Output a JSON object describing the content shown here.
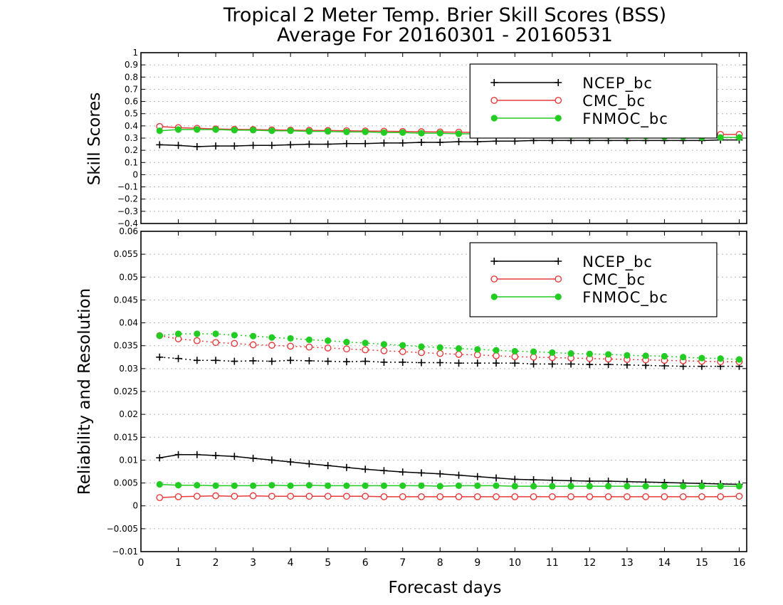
{
  "title_line1": "Tropical 2 Meter Temp. Brier Skill Scores (BSS)",
  "title_line2": "Average For 20160301 - 20160531",
  "xlabel": "Forecast days",
  "colors": {
    "NCEP_bc": "#000000",
    "CMC_bc": "#e83a3a",
    "FNMOC_bc": "#22cc22",
    "grid": "#b5b5b5"
  },
  "chart_data": [
    {
      "type": "line",
      "ylabel": "Skill Scores",
      "ylim": [
        -0.4,
        1
      ],
      "yticks": [
        1,
        0.9,
        0.8,
        0.7,
        0.6,
        0.5,
        0.4,
        0.3,
        0.2,
        0.1,
        0,
        -0.1,
        -0.2,
        -0.3,
        -0.4
      ],
      "xlim": [
        0,
        16.2
      ],
      "grid": true,
      "legend_position": "top-right",
      "legend": [
        "NCEP_bc",
        "CMC_bc",
        "FNMOC_bc"
      ],
      "x": [
        0.5,
        1,
        1.5,
        2,
        2.5,
        3,
        3.5,
        4,
        4.5,
        5,
        5.5,
        6,
        6.5,
        7,
        7.5,
        8,
        8.5,
        9,
        9.5,
        10,
        10.5,
        11,
        11.5,
        12,
        12.5,
        13,
        13.5,
        14,
        14.5,
        15,
        15.5,
        16
      ],
      "series": [
        {
          "name": "NCEP_bc",
          "marker": "plus",
          "style": "solid",
          "values": [
            0.245,
            0.24,
            0.23,
            0.235,
            0.235,
            0.24,
            0.24,
            0.245,
            0.25,
            0.25,
            0.255,
            0.255,
            0.26,
            0.26,
            0.265,
            0.265,
            0.27,
            0.27,
            0.275,
            0.275,
            0.28,
            0.28,
            0.28,
            0.28,
            0.28,
            0.28,
            0.28,
            0.28,
            0.28,
            0.28,
            0.285,
            0.285
          ]
        },
        {
          "name": "CMC_bc",
          "marker": "circle-open",
          "style": "solid",
          "values": [
            0.395,
            0.385,
            0.38,
            0.375,
            0.372,
            0.37,
            0.367,
            0.365,
            0.363,
            0.362,
            0.36,
            0.358,
            0.356,
            0.354,
            0.352,
            0.35,
            0.348,
            0.346,
            0.344,
            0.342,
            0.34,
            0.338,
            0.337,
            0.336,
            0.335,
            0.334,
            0.333,
            0.332,
            0.331,
            0.33,
            0.33,
            0.33
          ]
        },
        {
          "name": "FNMOC_bc",
          "marker": "circle-filled",
          "style": "solid",
          "values": [
            0.36,
            0.37,
            0.37,
            0.37,
            0.365,
            0.365,
            0.36,
            0.36,
            0.355,
            0.355,
            0.35,
            0.35,
            0.345,
            0.345,
            0.34,
            0.34,
            0.335,
            0.335,
            0.33,
            0.33,
            0.325,
            0.325,
            0.32,
            0.32,
            0.32,
            0.315,
            0.315,
            0.31,
            0.31,
            0.305,
            0.305,
            0.305
          ]
        }
      ]
    },
    {
      "type": "line",
      "ylabel": "Reliability and Resolution",
      "ylim": [
        -0.01,
        0.06
      ],
      "yticks": [
        0.06,
        0.055,
        0.05,
        0.045,
        0.04,
        0.035,
        0.03,
        0.025,
        0.02,
        0.015,
        0.01,
        0.005,
        0,
        -0.005,
        -0.01
      ],
      "xlim": [
        0,
        16.2
      ],
      "xticks": [
        0,
        1,
        2,
        3,
        4,
        5,
        6,
        7,
        8,
        9,
        10,
        11,
        12,
        13,
        14,
        15,
        16
      ],
      "grid": true,
      "legend_position": "top-right",
      "legend": [
        "NCEP_bc",
        "CMC_bc",
        "FNMOC_bc"
      ],
      "x": [
        0.5,
        1,
        1.5,
        2,
        2.5,
        3,
        3.5,
        4,
        4.5,
        5,
        5.5,
        6,
        6.5,
        7,
        7.5,
        8,
        8.5,
        9,
        9.5,
        10,
        10.5,
        11,
        11.5,
        12,
        12.5,
        13,
        13.5,
        14,
        14.5,
        15,
        15.5,
        16
      ],
      "series": [
        {
          "name": "NCEP_bc",
          "marker": "plus",
          "style": "dotted",
          "values": [
            0.0325,
            0.0322,
            0.0318,
            0.0318,
            0.0316,
            0.0317,
            0.0316,
            0.0318,
            0.0317,
            0.0316,
            0.0315,
            0.0316,
            0.0314,
            0.0314,
            0.0313,
            0.0313,
            0.0312,
            0.0312,
            0.0312,
            0.0312,
            0.031,
            0.031,
            0.031,
            0.0309,
            0.0309,
            0.0308,
            0.0307,
            0.0306,
            0.0305,
            0.0305,
            0.0305,
            0.0305
          ]
        },
        {
          "name": "CMC_bc",
          "marker": "circle-open",
          "style": "dotted",
          "values": [
            0.0372,
            0.0365,
            0.0361,
            0.0357,
            0.0355,
            0.0352,
            0.0351,
            0.0349,
            0.0347,
            0.0345,
            0.0343,
            0.0341,
            0.0339,
            0.0337,
            0.0335,
            0.0333,
            0.0331,
            0.033,
            0.0328,
            0.0326,
            0.0325,
            0.0324,
            0.0323,
            0.0322,
            0.0321,
            0.032,
            0.0319,
            0.0318,
            0.0317,
            0.0316,
            0.0315,
            0.0315
          ]
        },
        {
          "name": "FNMOC_bc",
          "marker": "circle-filled",
          "style": "dotted",
          "values": [
            0.0372,
            0.0376,
            0.0376,
            0.0376,
            0.0373,
            0.0371,
            0.0368,
            0.0366,
            0.0363,
            0.0361,
            0.0358,
            0.0356,
            0.0353,
            0.0351,
            0.0348,
            0.0346,
            0.0344,
            0.0342,
            0.034,
            0.0338,
            0.0337,
            0.0335,
            0.0333,
            0.0332,
            0.0331,
            0.0329,
            0.0328,
            0.0327,
            0.0325,
            0.0323,
            0.0322,
            0.032
          ]
        },
        {
          "name": "NCEP_bc",
          "marker": "plus",
          "style": "solid",
          "values": [
            0.0105,
            0.0112,
            0.0112,
            0.011,
            0.0108,
            0.0104,
            0.01,
            0.0096,
            0.0092,
            0.0088,
            0.0084,
            0.008,
            0.0077,
            0.0074,
            0.0072,
            0.007,
            0.0067,
            0.0064,
            0.0061,
            0.0058,
            0.0057,
            0.0056,
            0.0055,
            0.0054,
            0.0054,
            0.0053,
            0.0052,
            0.0051,
            0.005,
            0.0049,
            0.0048,
            0.0047
          ]
        },
        {
          "name": "FNMOC_bc",
          "marker": "circle-filled",
          "style": "solid",
          "values": [
            0.0047,
            0.0045,
            0.0045,
            0.0044,
            0.0044,
            0.0044,
            0.0045,
            0.0044,
            0.0045,
            0.0044,
            0.0044,
            0.0044,
            0.0044,
            0.0044,
            0.0044,
            0.0043,
            0.0044,
            0.0044,
            0.0044,
            0.0043,
            0.0043,
            0.0043,
            0.0043,
            0.0043,
            0.0043,
            0.0043,
            0.0043,
            0.0043,
            0.0043,
            0.0043,
            0.0043,
            0.0043
          ]
        },
        {
          "name": "CMC_bc",
          "marker": "circle-open",
          "style": "solid",
          "values": [
            0.0018,
            0.002,
            0.0021,
            0.0022,
            0.0021,
            0.0022,
            0.0021,
            0.0021,
            0.0021,
            0.0021,
            0.0021,
            0.0021,
            0.002,
            0.002,
            0.002,
            0.002,
            0.002,
            0.002,
            0.002,
            0.002,
            0.002,
            0.002,
            0.002,
            0.002,
            0.002,
            0.002,
            0.002,
            0.002,
            0.002,
            0.002,
            0.002,
            0.0021
          ]
        }
      ]
    }
  ]
}
